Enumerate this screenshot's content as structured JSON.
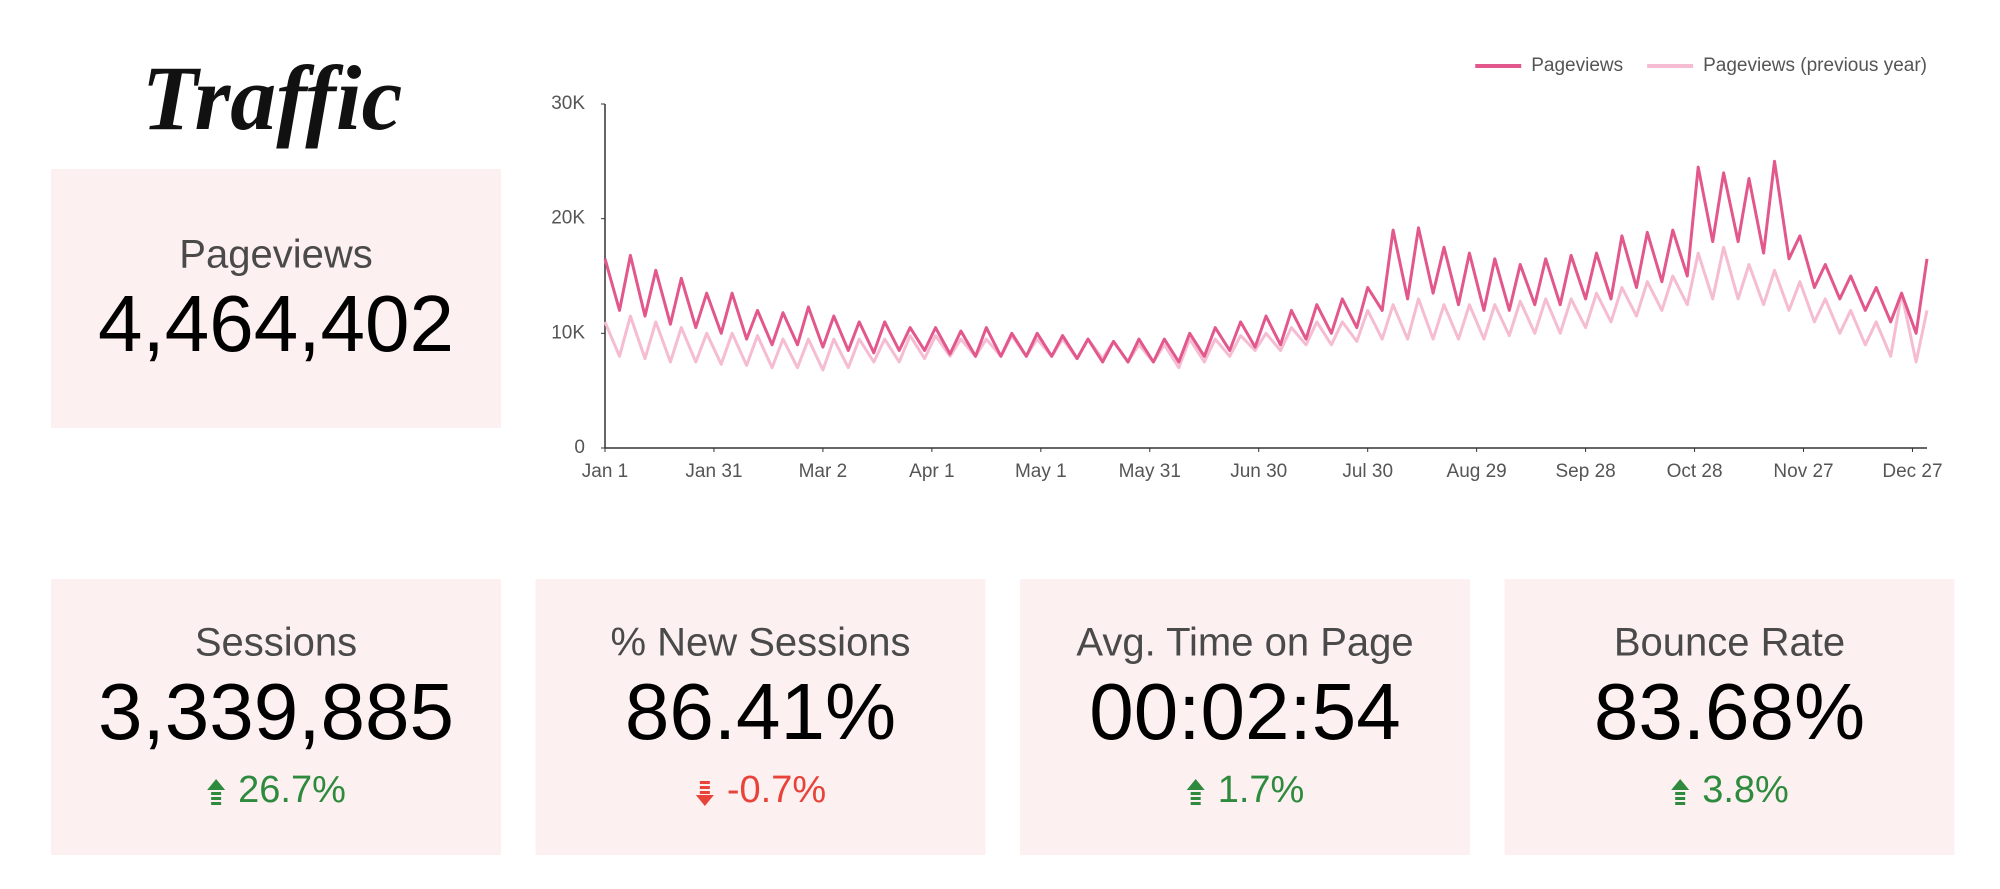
{
  "header": {
    "title": "Traffic"
  },
  "main_card": {
    "title": "Pageviews",
    "value": "4,464,402"
  },
  "chart_data": {
    "type": "line",
    "x": [
      0,
      4,
      7,
      11,
      14,
      18,
      21,
      25,
      28,
      32,
      35,
      39,
      42,
      46,
      49,
      53,
      56,
      60,
      63,
      67,
      70,
      74,
      77,
      81,
      84,
      88,
      91,
      95,
      98,
      102,
      105,
      109,
      112,
      116,
      119,
      123,
      126,
      130,
      133,
      137,
      140,
      144,
      147,
      151,
      154,
      158,
      161,
      165,
      168,
      172,
      175,
      179,
      182,
      186,
      189,
      193,
      196,
      200,
      203,
      207,
      210,
      214,
      217,
      221,
      224,
      228,
      231,
      235,
      238,
      242,
      245,
      249,
      252,
      256,
      259,
      263,
      266,
      270,
      273,
      277,
      280,
      284,
      287,
      291,
      294,
      298,
      301,
      305,
      308,
      312,
      315,
      319,
      322,
      326,
      329,
      333,
      336,
      340,
      343,
      347,
      350,
      354,
      357,
      361,
      364
    ],
    "series": [
      {
        "name": "Pageviews",
        "color": "#e2588c",
        "values": [
          16500,
          12000,
          16800,
          11500,
          15500,
          10800,
          14800,
          10500,
          13500,
          10000,
          13500,
          9500,
          12000,
          9000,
          11800,
          9000,
          12300,
          8800,
          11500,
          8500,
          11000,
          8300,
          11000,
          8500,
          10500,
          8500,
          10500,
          8200,
          10200,
          8000,
          10500,
          8000,
          10000,
          8000,
          10000,
          8000,
          9800,
          7800,
          9500,
          7500,
          9300,
          7500,
          9500,
          7500,
          9500,
          7500,
          10000,
          8000,
          10500,
          8500,
          11000,
          8800,
          11500,
          9000,
          12000,
          9500,
          12500,
          10000,
          13000,
          10500,
          14000,
          12000,
          19000,
          13000,
          19200,
          13500,
          17500,
          12500,
          17000,
          12000,
          16500,
          12000,
          16000,
          12500,
          16500,
          12500,
          16800,
          13000,
          17000,
          13000,
          18500,
          14000,
          18800,
          14500,
          19000,
          15000,
          24500,
          18000,
          24000,
          18000,
          23500,
          17000,
          25000,
          16500,
          18500,
          14000,
          16000,
          13000,
          15000,
          12000,
          14000,
          11000,
          13500,
          10000,
          16500
        ]
      },
      {
        "name": "Pageviews (previous year)",
        "color": "#f5bcd2",
        "values": [
          11000,
          8000,
          11500,
          7800,
          11000,
          7500,
          10500,
          7500,
          10000,
          7300,
          10000,
          7200,
          9800,
          7000,
          9500,
          7000,
          9500,
          6800,
          9500,
          7000,
          9500,
          7500,
          9500,
          7500,
          9800,
          7800,
          9800,
          8000,
          9500,
          8000,
          9500,
          8000,
          9800,
          8000,
          9500,
          8000,
          9500,
          7800,
          9500,
          7800,
          9300,
          7500,
          9000,
          7500,
          9000,
          7000,
          9500,
          7500,
          9500,
          8000,
          9800,
          8500,
          10000,
          8500,
          10500,
          9000,
          11000,
          9000,
          11000,
          9300,
          12000,
          9500,
          12500,
          9500,
          13000,
          9500,
          12500,
          9500,
          12500,
          9500,
          12500,
          9800,
          12800,
          10000,
          13000,
          10000,
          13000,
          10500,
          13500,
          11000,
          14000,
          11500,
          14500,
          12000,
          15000,
          12500,
          17000,
          13000,
          17500,
          13000,
          16000,
          12500,
          15500,
          12000,
          14500,
          11000,
          13000,
          10000,
          12000,
          9000,
          11000,
          8000,
          13500,
          7500,
          12000
        ]
      }
    ],
    "xlim": [
      0,
      364
    ],
    "xticks": [
      {
        "value": 0,
        "label": "Jan 1"
      },
      {
        "value": 30,
        "label": "Jan 31"
      },
      {
        "value": 60,
        "label": "Mar 2"
      },
      {
        "value": 90,
        "label": "Apr 1"
      },
      {
        "value": 120,
        "label": "May 1"
      },
      {
        "value": 150,
        "label": "May 31"
      },
      {
        "value": 180,
        "label": "Jun 30"
      },
      {
        "value": 210,
        "label": "Jul 30"
      },
      {
        "value": 240,
        "label": "Aug 29"
      },
      {
        "value": 270,
        "label": "Sep 28"
      },
      {
        "value": 300,
        "label": "Oct 28"
      },
      {
        "value": 330,
        "label": "Nov 27"
      },
      {
        "value": 360,
        "label": "Dec 27"
      }
    ],
    "ylim": [
      0,
      30000
    ],
    "yticks": [
      0,
      {
        "value": 10000,
        "label": "10K"
      },
      {
        "value": 20000,
        "label": "20K"
      },
      {
        "value": 30000,
        "label": "30K"
      }
    ],
    "grid": false,
    "legend": "top-right"
  },
  "cards": [
    {
      "title": "Sessions",
      "value": "3,339,885",
      "delta": "26.7%",
      "direction": "up",
      "color": "#2e8b3e"
    },
    {
      "title": "% New Sessions",
      "value": "86.41%",
      "delta": "-0.7%",
      "direction": "down",
      "color": "#e8433a"
    },
    {
      "title": "Avg. Time on Page",
      "value": "00:02:54",
      "delta": "1.7%",
      "direction": "up",
      "color": "#2e8b3e"
    },
    {
      "title": "Bounce Rate",
      "value": "83.68%",
      "delta": "3.8%",
      "direction": "up",
      "color": "#2e8b3e"
    }
  ]
}
